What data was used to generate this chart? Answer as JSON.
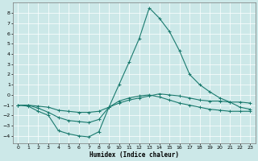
{
  "xlabel": "Humidex (Indice chaleur)",
  "xlim": [
    -0.5,
    23.5
  ],
  "ylim": [
    -4.7,
    9.0
  ],
  "xticks": [
    0,
    1,
    2,
    3,
    4,
    5,
    6,
    7,
    8,
    9,
    10,
    11,
    12,
    13,
    14,
    15,
    16,
    17,
    18,
    19,
    20,
    21,
    22,
    23
  ],
  "yticks": [
    -4,
    -3,
    -2,
    -1,
    0,
    1,
    2,
    3,
    4,
    5,
    6,
    7,
    8
  ],
  "bg_color": "#cce8e8",
  "line_color": "#1a7a6e",
  "grid_color": "#ffffff",
  "curves": {
    "curve1": {
      "x": [
        0,
        1,
        2,
        3,
        4,
        5,
        6,
        7,
        8,
        9,
        10,
        11,
        12,
        13,
        14,
        15,
        16,
        17,
        18,
        19,
        20,
        21,
        22,
        23
      ],
      "y": [
        -1.0,
        -1.1,
        -1.6,
        -2.0,
        -3.5,
        -3.8,
        -4.0,
        -4.1,
        -3.6,
        -1.2,
        1.0,
        3.2,
        5.5,
        8.5,
        7.5,
        6.2,
        4.3,
        2.0,
        1.0,
        0.3,
        -0.3,
        -0.7,
        -1.2,
        -1.4
      ]
    },
    "curve2": {
      "x": [
        0,
        1,
        2,
        3,
        4,
        5,
        6,
        7,
        8,
        9,
        10,
        11,
        12,
        13,
        14,
        15,
        16,
        17,
        18,
        19,
        20,
        21,
        22,
        23
      ],
      "y": [
        -1.0,
        -1.0,
        -1.3,
        -1.7,
        -2.2,
        -2.5,
        -2.6,
        -2.7,
        -2.4,
        -1.2,
        -0.6,
        -0.3,
        -0.1,
        0.0,
        -0.2,
        -0.5,
        -0.8,
        -1.0,
        -1.2,
        -1.4,
        -1.5,
        -1.6,
        -1.6,
        -1.6
      ]
    },
    "curve3": {
      "x": [
        0,
        1,
        2,
        3,
        4,
        5,
        6,
        7,
        8,
        9,
        10,
        11,
        12,
        13,
        14,
        15,
        16,
        17,
        18,
        19,
        20,
        21,
        22,
        23
      ],
      "y": [
        -1.0,
        -1.0,
        -1.1,
        -1.2,
        -1.5,
        -1.6,
        -1.7,
        -1.7,
        -1.6,
        -1.2,
        -0.8,
        -0.5,
        -0.3,
        -0.1,
        0.1,
        0.0,
        -0.1,
        -0.3,
        -0.5,
        -0.6,
        -0.6,
        -0.7,
        -0.7,
        -0.8
      ]
    }
  }
}
